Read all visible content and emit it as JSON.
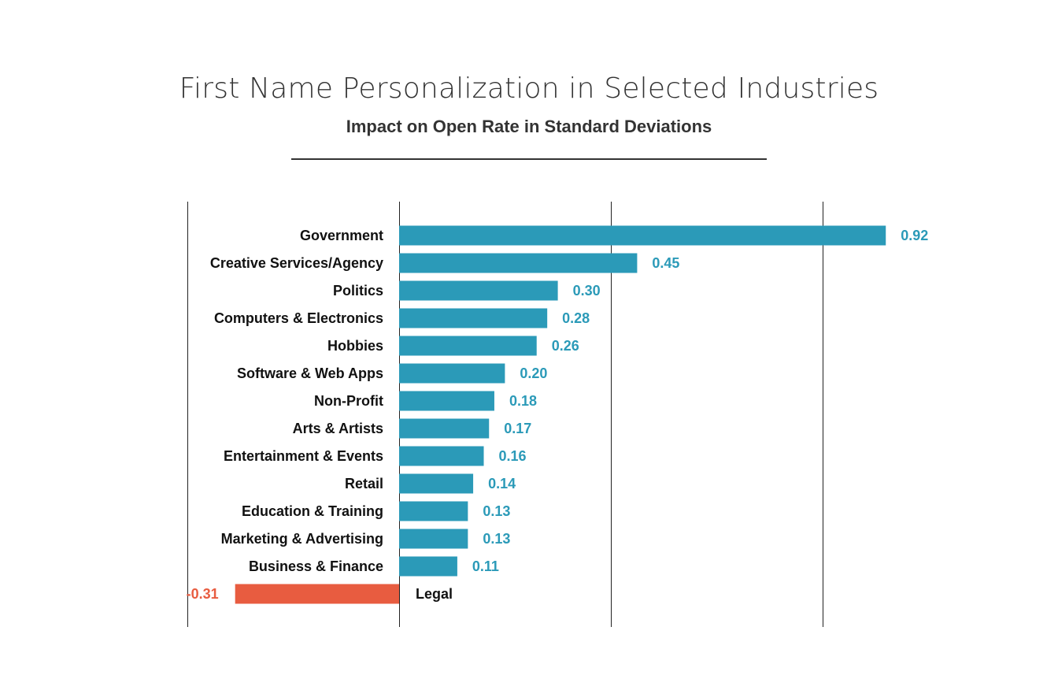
{
  "chart_data": {
    "type": "bar",
    "orientation": "horizontal",
    "title": "First Name Personalization in Selected Industries",
    "subtitle": "Impact on Open Rate in Standard Deviations",
    "xlabel": "",
    "ylabel": "",
    "xlim": [
      -0.4,
      1.2
    ],
    "gridlines": [
      -0.4,
      0,
      0.4,
      0.8
    ],
    "categories": [
      "Government",
      "Creative Services/Agency",
      "Politics",
      "Computers & Electronics",
      "Hobbies",
      "Software & Web Apps",
      "Non-Profit",
      "Arts & Artists",
      "Entertainment & Events",
      "Retail",
      "Education & Training",
      "Marketing & Advertising",
      "Business & Finance",
      "Legal"
    ],
    "values": [
      0.92,
      0.45,
      0.3,
      0.28,
      0.26,
      0.2,
      0.18,
      0.17,
      0.16,
      0.14,
      0.13,
      0.13,
      0.11,
      -0.31
    ],
    "value_labels": [
      "0.92",
      "0.45",
      "0.30",
      "0.28",
      "0.26",
      "0.20",
      "0.18",
      "0.17",
      "0.16",
      "0.14",
      "0.13",
      "0.13",
      "0.11",
      "-0.31"
    ],
    "positive_color": "#2b9ab8",
    "negative_color": "#e85c40",
    "positive_label_color": "#2b9ab8",
    "negative_label_color": "#e85c40"
  }
}
